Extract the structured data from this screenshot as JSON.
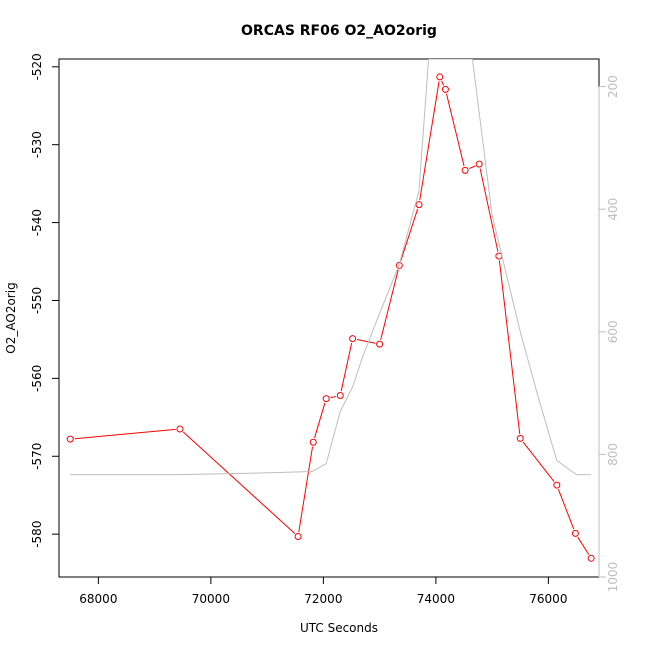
{
  "chart_data": {
    "type": "line",
    "title": "ORCAS RF06 O2_AO2orig",
    "xlabel": "UTC Seconds",
    "ylabel": "O2_AO2orig",
    "xlim": [
      67300,
      76900
    ],
    "ylim": [
      -585.5,
      -519
    ],
    "xticks": [
      68000,
      70000,
      72000,
      74000,
      76000
    ],
    "yticks": [
      -580,
      -570,
      -560,
      -550,
      -540,
      -530,
      -520
    ],
    "y2lim": [
      1000,
      155
    ],
    "y2ticks": [
      200,
      400,
      600,
      800,
      1000
    ],
    "grid": false,
    "series": [
      {
        "color": "#ff0000",
        "marker": "circle",
        "axis": "left",
        "x": [
          67500,
          69450,
          71550,
          71820,
          72050,
          72300,
          72520,
          73000,
          73350,
          73700,
          74070,
          74170,
          74520,
          74770,
          75120,
          75500,
          76150,
          76480,
          76760
        ],
        "y": [
          -567.8,
          -566.5,
          -580.3,
          -568.2,
          -562.6,
          -562.2,
          -554.9,
          -555.6,
          -545.5,
          -537.7,
          -521.3,
          -522.9,
          -533.3,
          -532.5,
          -544.3,
          -567.7,
          -573.7,
          -579.9,
          -583.1
        ]
      },
      {
        "color": "#bebebe",
        "marker": "none",
        "axis": "right",
        "x": [
          67500,
          69450,
          71050,
          71800,
          72050,
          72300,
          72520,
          72700,
          73000,
          73350,
          73700,
          73870,
          74650,
          75000,
          75500,
          75800,
          76150,
          76500,
          76760
        ],
        "y": [
          833,
          833,
          830,
          828,
          815,
          730,
          690,
          640,
          570,
          490,
          370,
          155,
          155,
          410,
          600,
          700,
          810,
          833,
          833
        ]
      }
    ]
  }
}
